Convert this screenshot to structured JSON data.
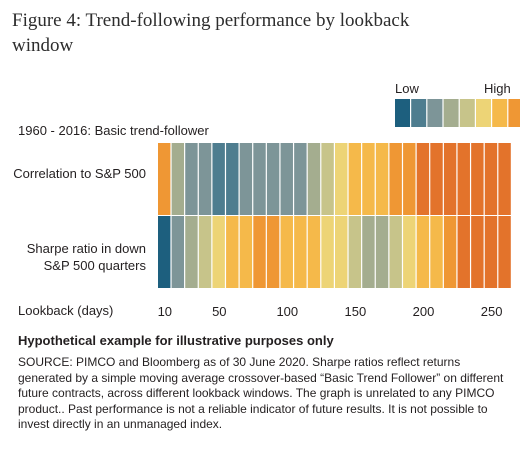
{
  "figure": {
    "title": "Figure 4: Trend-following performance by lookback window",
    "subtitle": "1960 - 2016: Basic trend-follower",
    "note": "Hypothetical example for illustrative purposes only",
    "source": "SOURCE: PIMCO and Bloomberg as of 30 June 2020. Sharpe ratios reflect returns generated by a simple moving average crossover-based “Basic Trend Follower” on different future contracts, across different lookback windows. The graph is unrelated to any PIMCO product.. Past performance is not a reliable indicator of future results. It is not possible to invest directly in an unmanaged index."
  },
  "chart_data": {
    "type": "heatmap",
    "title": "1960 - 2016: Basic trend-follower",
    "xlabel": "Lookback (days)",
    "xticks": [
      10,
      50,
      100,
      150,
      200,
      250
    ],
    "xlim": [
      10,
      260
    ],
    "rows": [
      "Correlation to S&P 500",
      "Sharpe ratio in down S&P 500 quarters"
    ],
    "columns": 26,
    "color_scale": {
      "low_label": "Low",
      "high_label": "High",
      "colors": [
        "#1d5f7e",
        "#4e7d8f",
        "#7d9598",
        "#a4ad8f",
        "#c7c48a",
        "#edd476",
        "#f5b94a",
        "#ef9734",
        "#e3732b"
      ]
    },
    "values": [
      [
        0.9,
        0.4,
        0.3,
        0.2,
        0.1,
        0.1,
        0.2,
        0.3,
        0.2,
        0.2,
        0.3,
        0.4,
        0.5,
        0.6,
        0.7,
        0.7,
        0.8,
        0.9,
        0.9,
        1.0,
        1.0,
        1.0,
        1.0,
        1.0,
        1.0,
        1.0
      ],
      [
        0.0,
        0.2,
        0.4,
        0.5,
        0.6,
        0.7,
        0.8,
        0.9,
        0.9,
        0.8,
        0.8,
        0.7,
        0.6,
        0.6,
        0.5,
        0.4,
        0.4,
        0.5,
        0.6,
        0.7,
        0.8,
        0.9,
        1.0,
        1.0,
        1.0,
        1.0
      ]
    ]
  }
}
